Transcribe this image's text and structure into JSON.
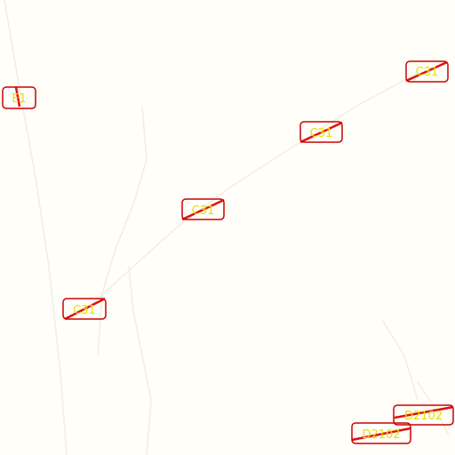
{
  "map": {
    "labels": [
      {
        "id": "e1",
        "text": "E1"
      },
      {
        "id": "c31-a",
        "text": "C31"
      },
      {
        "id": "c31-b",
        "text": "C31"
      },
      {
        "id": "c31-c",
        "text": "C31"
      },
      {
        "id": "c31-d",
        "text": "C31"
      },
      {
        "id": "d2102",
        "text": "D2102"
      },
      {
        "id": "d2102-b",
        "text": "D2102"
      }
    ],
    "colors": {
      "background": "#fffef9",
      "road_shield_border": "#cc0000",
      "label_text": "#e8e000",
      "road_strike": "#e01010",
      "road_faint": "#f2efe6"
    }
  }
}
